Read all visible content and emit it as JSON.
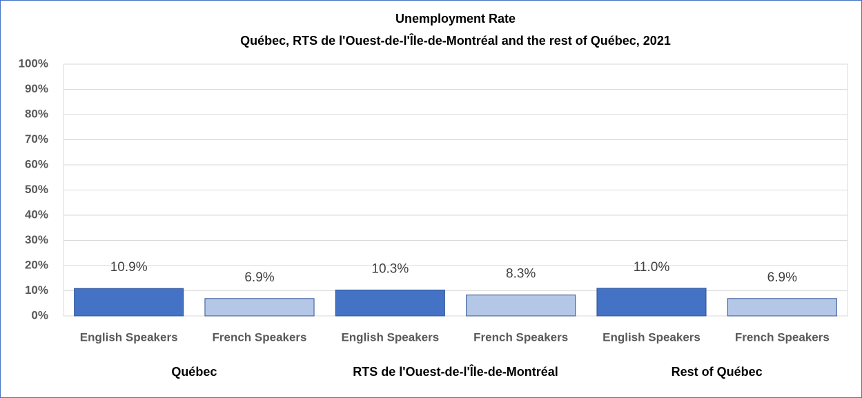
{
  "chart_data": {
    "type": "bar",
    "title": "Unemployment Rate",
    "subtitle": "Québec, RTS de l'Ouest-de-l'Île-de-Montréal and the rest of Québec, 2021",
    "categories": [
      "English Speakers",
      "French Speakers",
      "English Speakers",
      "French Speakers",
      "English Speakers",
      "French Speakers"
    ],
    "groups": [
      "Québec",
      "RTS de l'Ouest-de-l'Île-de-Montréal",
      "Rest of Québec"
    ],
    "values": [
      10.9,
      6.9,
      10.3,
      8.3,
      11.0,
      6.9
    ],
    "value_labels": [
      "10.9%",
      "6.9%",
      "10.3%",
      "8.3%",
      "11.0%",
      "6.9%"
    ],
    "colors": [
      "#4472c4",
      "#b4c7e7",
      "#4472c4",
      "#b4c7e7",
      "#4472c4",
      "#b4c7e7"
    ],
    "ylim": [
      0,
      100
    ],
    "yticks": [
      {
        "value": 0,
        "label": "0%"
      },
      {
        "value": 10,
        "label": "10%"
      },
      {
        "value": 20,
        "label": "20%"
      },
      {
        "value": 30,
        "label": "30%"
      },
      {
        "value": 40,
        "label": "40%"
      },
      {
        "value": 50,
        "label": "50%"
      },
      {
        "value": 60,
        "label": "60%"
      },
      {
        "value": 70,
        "label": "70%"
      },
      {
        "value": 80,
        "label": "80%"
      },
      {
        "value": 90,
        "label": "90%"
      },
      {
        "value": 100,
        "label": "100%"
      }
    ],
    "grid": true
  }
}
